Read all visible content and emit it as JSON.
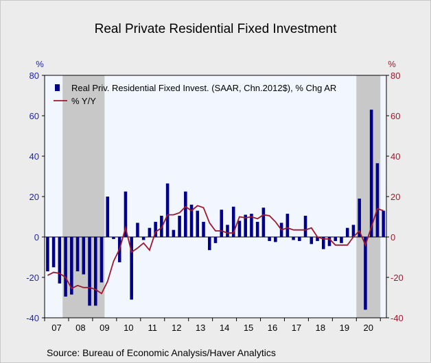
{
  "title": "Real Private Residential Fixed Investment",
  "source": "Source:  Bureau of Economic Analysis/Haver Analytics",
  "colors": {
    "bar": "#00008b",
    "line": "#a0162c",
    "left_axis": "#1f1fb4",
    "right_axis": "#9b1b30",
    "recession": "#c8c8c8",
    "plot_bg": "#f2f6ff"
  },
  "chart_data": {
    "type": "bar+line",
    "title": "Real Private Residential Fixed Investment",
    "left_axis": {
      "unit": "%",
      "range": [
        -40,
        80
      ],
      "ticks": [
        -40,
        -20,
        0,
        20,
        40,
        60,
        80
      ]
    },
    "right_axis": {
      "unit": "%",
      "range": [
        -40,
        80
      ],
      "ticks": [
        -40,
        -20,
        0,
        20,
        40,
        60,
        80
      ]
    },
    "x_labels": [
      "07",
      "08",
      "09",
      "10",
      "11",
      "12",
      "13",
      "14",
      "15",
      "16",
      "17",
      "18",
      "19",
      "20"
    ],
    "recessions": [
      {
        "from": "2007Q4",
        "to": "2009Q2"
      },
      {
        "from": "2020Q1",
        "to": "2020Q4"
      }
    ],
    "quarters": [
      "2007Q1",
      "2007Q2",
      "2007Q3",
      "2007Q4",
      "2008Q1",
      "2008Q2",
      "2008Q3",
      "2008Q4",
      "2009Q1",
      "2009Q2",
      "2009Q3",
      "2009Q4",
      "2010Q1",
      "2010Q2",
      "2010Q3",
      "2010Q4",
      "2011Q1",
      "2011Q2",
      "2011Q3",
      "2011Q4",
      "2012Q1",
      "2012Q2",
      "2012Q3",
      "2012Q4",
      "2013Q1",
      "2013Q2",
      "2013Q3",
      "2013Q4",
      "2014Q1",
      "2014Q2",
      "2014Q3",
      "2014Q4",
      "2015Q1",
      "2015Q2",
      "2015Q3",
      "2015Q4",
      "2016Q1",
      "2016Q2",
      "2016Q3",
      "2016Q4",
      "2017Q1",
      "2017Q2",
      "2017Q3",
      "2017Q4",
      "2018Q1",
      "2018Q2",
      "2018Q3",
      "2018Q4",
      "2019Q1",
      "2019Q2",
      "2019Q3",
      "2019Q4",
      "2020Q1",
      "2020Q2",
      "2020Q3",
      "2020Q4",
      "2021Q1"
    ],
    "series": [
      {
        "name": "Real Priv. Residential Fixed Invest. (SAAR, Chn.2012$), % Chg AR",
        "type": "bar",
        "axis": "left",
        "values": [
          -17,
          -15,
          -23,
          -29.5,
          -28.5,
          -17,
          -18.5,
          -34,
          -34,
          -22.5,
          20,
          -1,
          -12.5,
          22.5,
          -31,
          7,
          -1.5,
          4.5,
          7.5,
          10.5,
          26.5,
          3.5,
          10.5,
          22.5,
          16,
          13,
          7.5,
          -6.5,
          -3,
          13.5,
          6,
          15,
          8,
          11,
          11.5,
          7.5,
          14.5,
          -2,
          -2.5,
          7,
          11.5,
          -1.5,
          -2,
          10.5,
          -3.5,
          -2,
          -6,
          -4.5,
          -2,
          -3,
          4.5,
          6,
          19,
          -36,
          63,
          36.5,
          13
        ]
      },
      {
        "name": "% Y/Y",
        "type": "line",
        "axis": "right",
        "values": [
          -19,
          -17.5,
          -18,
          -20,
          -25.5,
          -24,
          -25,
          -25,
          -26,
          -28,
          -22,
          -12,
          -6,
          4.5,
          -7.5,
          -5.5,
          -3,
          -6.5,
          2.5,
          4.5,
          11,
          11,
          12,
          15,
          13,
          15.5,
          14.5,
          7,
          3,
          3,
          2,
          2,
          10,
          9.5,
          10,
          9,
          11,
          10.5,
          7.5,
          3.5,
          4.5,
          3.5,
          3.5,
          3.5,
          4.5,
          0,
          -1,
          -1,
          -4,
          -4,
          -4,
          0,
          3,
          -4,
          5,
          14,
          13
        ]
      }
    ]
  }
}
